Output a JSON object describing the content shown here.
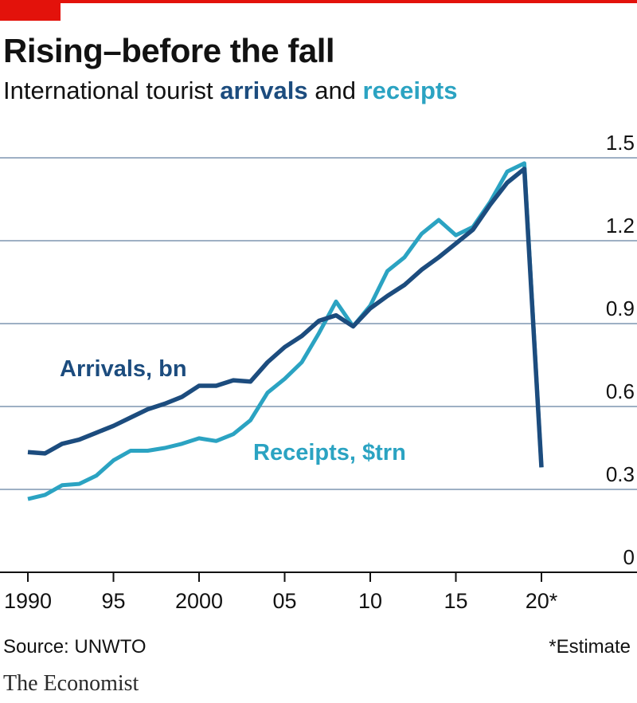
{
  "header": {
    "title": "Rising–before the fall",
    "subtitle_prefix": "International tourist ",
    "subtitle_arrivals": "arrivals",
    "subtitle_and": " and ",
    "subtitle_receipts": "receipts"
  },
  "footer": {
    "source": "Source: UNWTO",
    "footnote": "*Estimate",
    "brand": "The Economist"
  },
  "colors": {
    "brand_red": "#e3120b",
    "arrivals": "#1c4c7e",
    "receipts": "#2ba3c2",
    "grid": "#7f96b0"
  },
  "chart_data": {
    "type": "line",
    "title": "Rising–before the fall",
    "subtitle": "International tourist arrivals and receipts",
    "x_tick_labels": [
      "1990",
      "95",
      "2000",
      "05",
      "10",
      "15",
      "20*"
    ],
    "x_ticks": [
      1990,
      1995,
      2000,
      2005,
      2010,
      2015,
      2020
    ],
    "xlim": [
      1990,
      2020
    ],
    "y_tick_labels": [
      "0",
      "0.3",
      "0.6",
      "0.9",
      "1.2",
      "1.5"
    ],
    "y_ticks": [
      0,
      0.3,
      0.6,
      0.9,
      1.2,
      1.5
    ],
    "ylim": [
      0,
      1.5
    ],
    "grid": "horizontal",
    "y_axis_position": "right",
    "x": [
      1990,
      1991,
      1992,
      1993,
      1994,
      1995,
      1996,
      1997,
      1998,
      1999,
      2000,
      2001,
      2002,
      2003,
      2004,
      2005,
      2006,
      2007,
      2008,
      2009,
      2010,
      2011,
      2012,
      2013,
      2014,
      2015,
      2016,
      2017,
      2018,
      2019,
      2020
    ],
    "series": [
      {
        "name": "Arrivals, bn",
        "values": [
          0.435,
          0.43,
          0.465,
          0.48,
          0.505,
          0.53,
          0.56,
          0.59,
          0.61,
          0.635,
          0.675,
          0.675,
          0.695,
          0.69,
          0.76,
          0.815,
          0.855,
          0.91,
          0.93,
          0.89,
          0.955,
          1.0,
          1.04,
          1.095,
          1.14,
          1.19,
          1.24,
          1.33,
          1.41,
          1.46,
          0.38
        ]
      },
      {
        "name": "Receipts, $trn",
        "values": [
          0.265,
          0.28,
          0.315,
          0.32,
          0.35,
          0.405,
          0.44,
          0.44,
          0.45,
          0.465,
          0.485,
          0.475,
          0.5,
          0.55,
          0.65,
          0.7,
          0.76,
          0.865,
          0.98,
          0.89,
          0.965,
          1.09,
          1.14,
          1.225,
          1.275,
          1.22,
          1.25,
          1.34,
          1.45,
          1.48,
          0.38
        ]
      }
    ]
  }
}
